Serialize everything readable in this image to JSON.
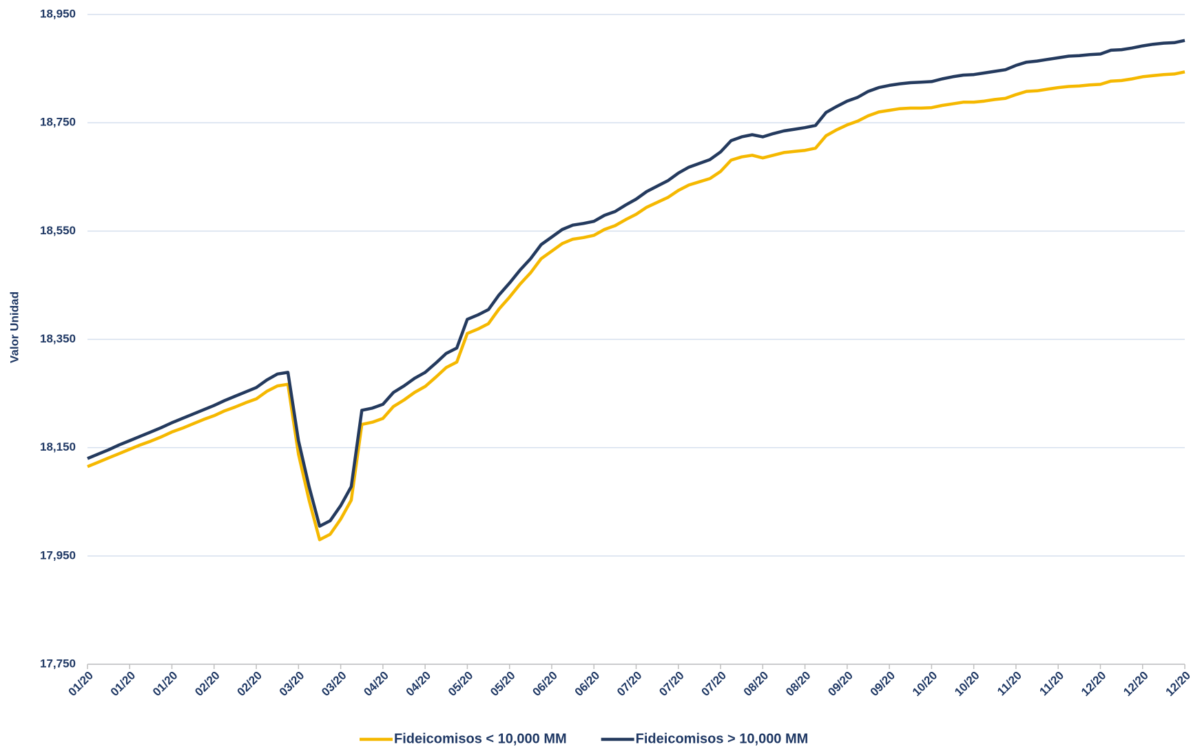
{
  "chart_data": {
    "type": "line",
    "y_label": "Valor Unidad",
    "categories": [
      "01/20",
      null,
      null,
      null,
      "01/20",
      null,
      null,
      null,
      "01/20",
      null,
      null,
      null,
      "02/20",
      null,
      null,
      null,
      "02/20",
      null,
      null,
      null,
      "03/20",
      null,
      null,
      null,
      "03/20",
      null,
      null,
      null,
      "04/20",
      null,
      null,
      null,
      "04/20",
      null,
      null,
      null,
      "05/20",
      null,
      null,
      null,
      "05/20",
      null,
      null,
      null,
      "06/20",
      null,
      null,
      null,
      "06/20",
      null,
      null,
      null,
      "07/20",
      null,
      null,
      null,
      "07/20",
      null,
      null,
      null,
      "07/20",
      null,
      null,
      null,
      "08/20",
      null,
      null,
      null,
      "08/20",
      null,
      null,
      null,
      "09/20",
      null,
      null,
      null,
      "09/20",
      null,
      null,
      null,
      "10/20",
      null,
      null,
      null,
      "10/20",
      null,
      null,
      null,
      "11/20",
      null,
      null,
      null,
      "11/20",
      null,
      null,
      null,
      "12/20",
      null,
      null,
      null,
      "12/20",
      null,
      null,
      null,
      "12/20"
    ],
    "series": [
      {
        "name": "Fideicomisos < 10,000 MM",
        "color": "#f5b800",
        "values": [
          18115,
          18123,
          18131,
          18139,
          18147,
          18155,
          18162,
          18170,
          18179,
          18186,
          18194,
          18202,
          18209,
          18218,
          18225,
          18233,
          18240,
          18254,
          18264,
          18267,
          18138,
          18053,
          17980,
          17990,
          18018,
          18053,
          18193,
          18197,
          18204,
          18226,
          18238,
          18252,
          18263,
          18280,
          18298,
          18308,
          18361,
          18369,
          18379,
          18406,
          18428,
          18452,
          18473,
          18499,
          18513,
          18527,
          18535,
          18538,
          18542,
          18553,
          18560,
          18571,
          18581,
          18594,
          18603,
          18612,
          18625,
          18635,
          18641,
          18647,
          18660,
          18681,
          18687,
          18690,
          18685,
          18690,
          18695,
          18697,
          18699,
          18703,
          18726,
          18737,
          18746,
          18753,
          18763,
          18770,
          18773,
          18776,
          18777,
          18777,
          18778,
          18782,
          18785,
          18788,
          18788,
          18790,
          18793,
          18795,
          18802,
          18808,
          18809,
          18812,
          18815,
          18817,
          18818,
          18820,
          18821,
          18827,
          18828,
          18831,
          18835,
          18837,
          18839,
          18840,
          18844
        ]
      },
      {
        "name": "Fideicomisos > 10,000 MM",
        "color": "#243a5e",
        "values": [
          18130,
          18138,
          18146,
          18155,
          18163,
          18171,
          18179,
          18187,
          18196,
          18204,
          18212,
          18220,
          18228,
          18237,
          18245,
          18253,
          18261,
          18275,
          18286,
          18289,
          18163,
          18078,
          18005,
          18015,
          18043,
          18078,
          18219,
          18223,
          18230,
          18252,
          18264,
          18278,
          18289,
          18306,
          18324,
          18334,
          18387,
          18395,
          18405,
          18432,
          18454,
          18478,
          18499,
          18525,
          18539,
          18553,
          18561,
          18564,
          18568,
          18579,
          18586,
          18598,
          18609,
          18623,
          18633,
          18643,
          18657,
          18668,
          18675,
          18682,
          18696,
          18717,
          18724,
          18728,
          18724,
          18730,
          18735,
          18738,
          18741,
          18745,
          18769,
          18780,
          18790,
          18797,
          18808,
          18815,
          18819,
          18822,
          18824,
          18825,
          18826,
          18831,
          18835,
          18838,
          18839,
          18842,
          18845,
          18848,
          18856,
          18862,
          18864,
          18867,
          18870,
          18873,
          18874,
          18876,
          18877,
          18884,
          18885,
          18888,
          18892,
          18895,
          18897,
          18898,
          18902
        ]
      }
    ],
    "ylim": [
      17750,
      18950
    ],
    "yticks": [
      {
        "value": 17750,
        "label": "17,750"
      },
      {
        "value": 17950,
        "label": "17,950"
      },
      {
        "value": 18150,
        "label": "18,150"
      },
      {
        "value": 18350,
        "label": "18,350"
      },
      {
        "value": 18550,
        "label": "18,550"
      },
      {
        "value": 18750,
        "label": "18,750"
      },
      {
        "value": 18950,
        "label": "18,950"
      }
    ],
    "grid": true,
    "legend": "bottom"
  }
}
